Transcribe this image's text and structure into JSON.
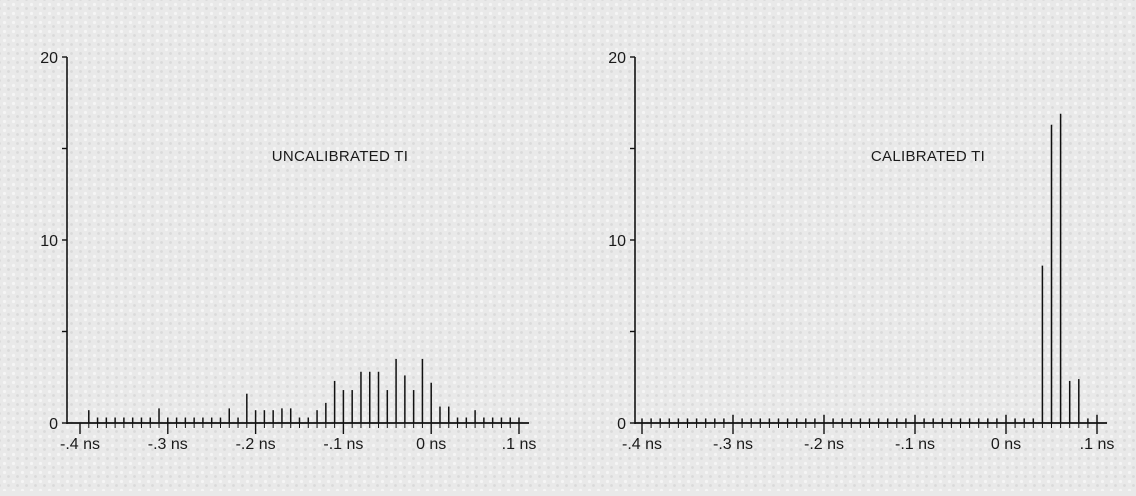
{
  "chart_data": [
    {
      "type": "bar",
      "title": "UNCALIBRATED TI",
      "xlabel": "",
      "ylabel": "",
      "x_ticks": [
        "-.4 ns",
        "-.3 ns",
        "-.2 ns",
        "-.1 ns",
        "0 ns",
        ".1 ns"
      ],
      "y_ticks": [
        "0",
        "10",
        "20"
      ],
      "xlim": [
        -0.4,
        0.1
      ],
      "ylim": [
        0,
        20
      ],
      "grid": false,
      "series": [
        {
          "x": [
            -0.4,
            -0.39,
            -0.38,
            -0.37,
            -0.36,
            -0.35,
            -0.34,
            -0.33,
            -0.32,
            -0.31,
            -0.3,
            -0.29,
            -0.28,
            -0.27,
            -0.26,
            -0.25,
            -0.24,
            -0.23,
            -0.22,
            -0.21,
            -0.2,
            -0.19,
            -0.18,
            -0.17,
            -0.16,
            -0.15,
            -0.14,
            -0.13,
            -0.12,
            -0.11,
            -0.1,
            -0.09,
            -0.08,
            -0.07,
            -0.06,
            -0.05,
            -0.04,
            -0.03,
            -0.02,
            -0.01,
            0.0,
            0.01,
            0.02,
            0.03,
            0.04,
            0.05,
            0.06,
            0.07,
            0.08,
            0.09,
            0.1
          ],
          "values": [
            0,
            0.7,
            0.3,
            0.3,
            0.3,
            0.3,
            0.3,
            0.3,
            0.3,
            0.8,
            0.3,
            0.3,
            0.3,
            0.3,
            0.3,
            0.3,
            0.3,
            0.8,
            0.3,
            1.6,
            0.7,
            0.7,
            0.7,
            0.8,
            0.8,
            0.3,
            0.3,
            0.7,
            1.1,
            2.3,
            1.8,
            1.8,
            2.8,
            2.8,
            2.8,
            1.8,
            3.5,
            2.6,
            1.8,
            3.5,
            2.2,
            0.9,
            0.9,
            0.3,
            0.3,
            0.7,
            0.3,
            0.3,
            0.3,
            0.3,
            0.3
          ]
        }
      ]
    },
    {
      "type": "bar",
      "title": "CALIBRATED TI",
      "xlabel": "",
      "ylabel": "",
      "x_ticks": [
        "-.4 ns",
        "-.3 ns",
        "-.2 ns",
        "-.1 ns",
        "0 ns",
        ".1 ns"
      ],
      "y_ticks": [
        "0",
        "10",
        "20"
      ],
      "xlim": [
        -0.4,
        0.1
      ],
      "ylim": [
        0,
        20
      ],
      "grid": false,
      "series": [
        {
          "x": [
            -0.4,
            -0.39,
            -0.38,
            -0.37,
            -0.36,
            -0.35,
            -0.34,
            -0.33,
            -0.32,
            -0.31,
            -0.3,
            -0.29,
            -0.28,
            -0.27,
            -0.26,
            -0.25,
            -0.24,
            -0.23,
            -0.22,
            -0.21,
            -0.2,
            -0.19,
            -0.18,
            -0.17,
            -0.16,
            -0.15,
            -0.14,
            -0.13,
            -0.12,
            -0.11,
            -0.1,
            -0.09,
            -0.08,
            -0.07,
            -0.06,
            -0.05,
            -0.04,
            -0.03,
            -0.02,
            -0.01,
            0.0,
            0.01,
            0.02,
            0.03,
            0.04,
            0.05,
            0.06,
            0.07,
            0.08,
            0.09,
            0.1
          ],
          "values": [
            0.25,
            0.25,
            0.25,
            0.25,
            0.25,
            0.25,
            0.25,
            0.25,
            0.25,
            0.25,
            0.45,
            0.25,
            0.25,
            0.25,
            0.25,
            0.25,
            0.25,
            0.25,
            0.25,
            0.25,
            0.45,
            0.25,
            0.25,
            0.25,
            0.25,
            0.25,
            0.25,
            0.25,
            0.25,
            0.25,
            0.45,
            0.25,
            0.25,
            0.25,
            0.25,
            0.25,
            0.25,
            0.25,
            0.25,
            0.25,
            0.45,
            0.25,
            0.25,
            0.25,
            8.6,
            16.3,
            16.9,
            2.3,
            2.4,
            0.25,
            0.45
          ]
        }
      ]
    }
  ]
}
